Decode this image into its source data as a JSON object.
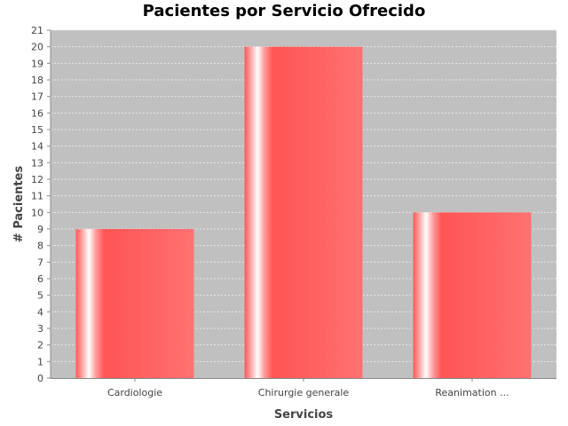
{
  "chart_data": {
    "type": "bar",
    "title": "Pacientes por Servicio Ofrecido",
    "categories": [
      "Cardiologie",
      "Chirurgie generale",
      "Reanimation ..."
    ],
    "values": [
      9,
      20,
      10
    ],
    "xlabel": "Servicios",
    "ylabel": "# Pacientes",
    "ylim": [
      0,
      21
    ],
    "yticks": [
      0,
      1,
      2,
      3,
      4,
      5,
      6,
      7,
      8,
      9,
      10,
      11,
      12,
      13,
      14,
      15,
      16,
      17,
      18,
      19,
      20,
      21
    ],
    "grid": true,
    "colors": {
      "plot_background": "#c0c0c0",
      "bar": "#ff5555",
      "grid": "#e8e8e8"
    }
  }
}
